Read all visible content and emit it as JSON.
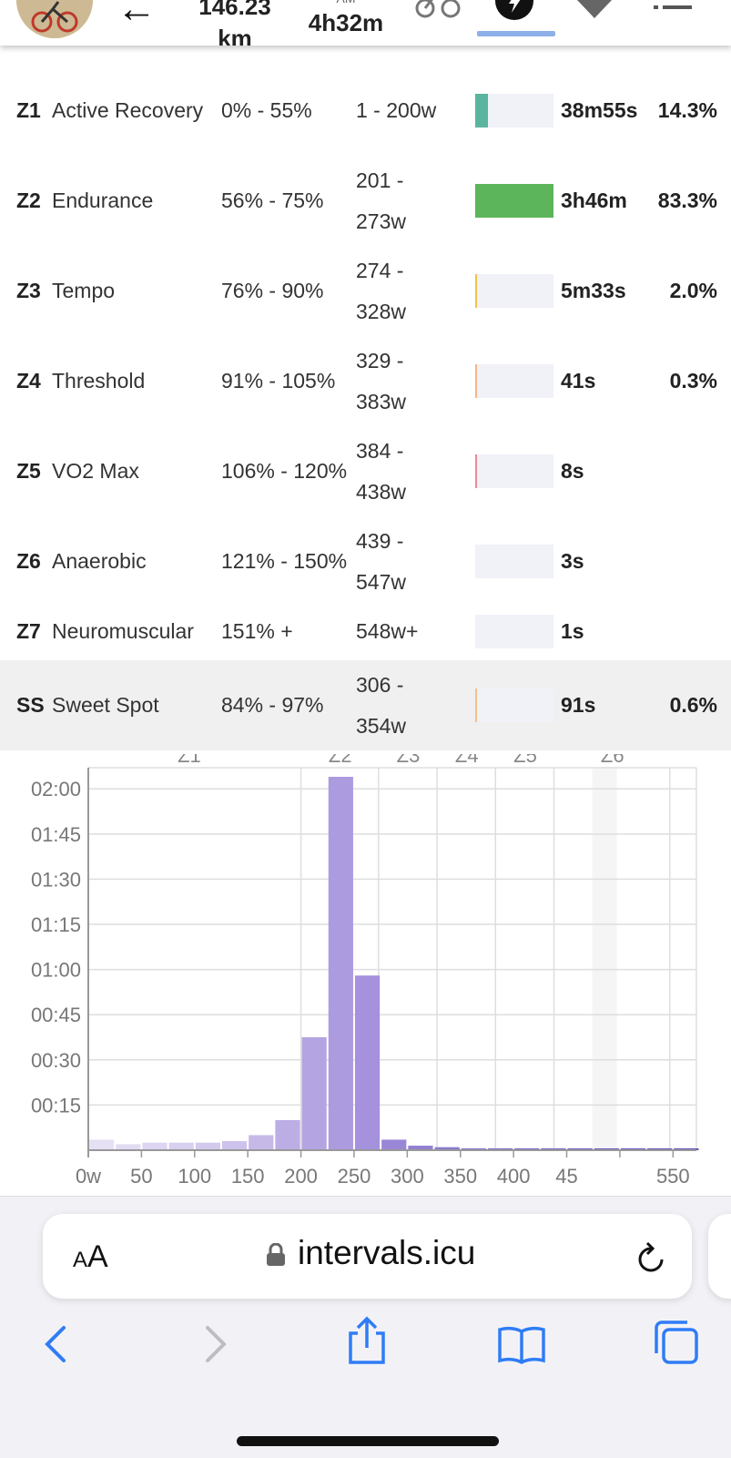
{
  "header": {
    "distance_value": "146.23",
    "distance_unit": "km",
    "time_label": "AM",
    "time_value": "4h32m"
  },
  "zones": [
    {
      "code": "Z1",
      "name": "Active Recovery",
      "pct": "0% - 55%",
      "watts": "1 - 200w",
      "time": "38m55s",
      "share": "14.3%",
      "fill": 0.16,
      "color": "#5ab59f"
    },
    {
      "code": "Z2",
      "name": "Endurance",
      "pct": "56% - 75%",
      "watts": "201 - 273w",
      "time": "3h46m",
      "share": "83.3%",
      "fill": 1.0,
      "color": "#5cb55a"
    },
    {
      "code": "Z3",
      "name": "Tempo",
      "pct": "76% - 90%",
      "watts": "274 - 328w",
      "time": "5m33s",
      "share": "2.0%",
      "fill": 0.02,
      "color": "#f2c34a"
    },
    {
      "code": "Z4",
      "name": "Threshold",
      "pct": "91% - 105%",
      "watts": "329 - 383w",
      "time": "41s",
      "share": "0.3%",
      "fill": 0.01,
      "color": "#f5b58a"
    },
    {
      "code": "Z5",
      "name": "VO2 Max",
      "pct": "106% - 120%",
      "watts": "384 - 438w",
      "time": "8s",
      "share": "",
      "fill": 0.01,
      "color": "#e88a9a"
    },
    {
      "code": "Z6",
      "name": "Anaerobic",
      "pct": "121% - 150%",
      "watts": "439 - 547w",
      "time": "3s",
      "share": "",
      "fill": 0,
      "color": "#c98ad8"
    },
    {
      "code": "Z7",
      "name": "Neuromuscular",
      "pct": "151% +",
      "watts": "548w+",
      "time": "1s",
      "share": "",
      "fill": 0,
      "color": "#9a7ad8"
    },
    {
      "code": "SS",
      "name": "Sweet Spot",
      "pct": "84% - 97%",
      "watts": "306 - 354w",
      "time": "91s",
      "share": "0.6%",
      "fill": 0.01,
      "color": "#f5c08a"
    }
  ],
  "chart_data": {
    "type": "bar",
    "xlabel": "",
    "ylabel": "",
    "x_ticks": [
      "0w",
      "50",
      "100",
      "150",
      "200",
      "250",
      "300",
      "350",
      "400",
      "45",
      "",
      "550"
    ],
    "y_ticks": [
      "02:00",
      "01:45",
      "01:30",
      "01:15",
      "01:00",
      "00:45",
      "00:30",
      "00:15"
    ],
    "zone_labels": [
      {
        "label": "Z1",
        "at": 95
      },
      {
        "label": "Z2",
        "at": 237
      },
      {
        "label": "Z3",
        "at": 301
      },
      {
        "label": "Z4",
        "at": 356
      },
      {
        "label": "Z5",
        "at": 411
      },
      {
        "label": "Z6",
        "at": 493
      }
    ],
    "zone_bounds": [
      200,
      273,
      328,
      383,
      438,
      547
    ],
    "ss_band": [
      474,
      497
    ],
    "xlim": [
      0,
      572
    ],
    "ylim_minutes": [
      0,
      124
    ],
    "bin_width": 25,
    "bin_starts": [
      0,
      25,
      50,
      75,
      100,
      125,
      150,
      175,
      200,
      225,
      250,
      275,
      300,
      325,
      350,
      375,
      400,
      425,
      450,
      475,
      500,
      525,
      550
    ],
    "minutes": [
      3.5,
      2,
      2.5,
      2.5,
      2.5,
      3,
      5,
      10,
      37.5,
      124,
      58,
      3.5,
      1.5,
      1,
      0.4,
      0.4,
      0.3,
      0.3,
      0.3,
      0.4,
      0.3,
      0.3,
      0.3
    ]
  },
  "browser": {
    "aa_small": "A",
    "aa_large": "A",
    "domain": "intervals.icu"
  }
}
